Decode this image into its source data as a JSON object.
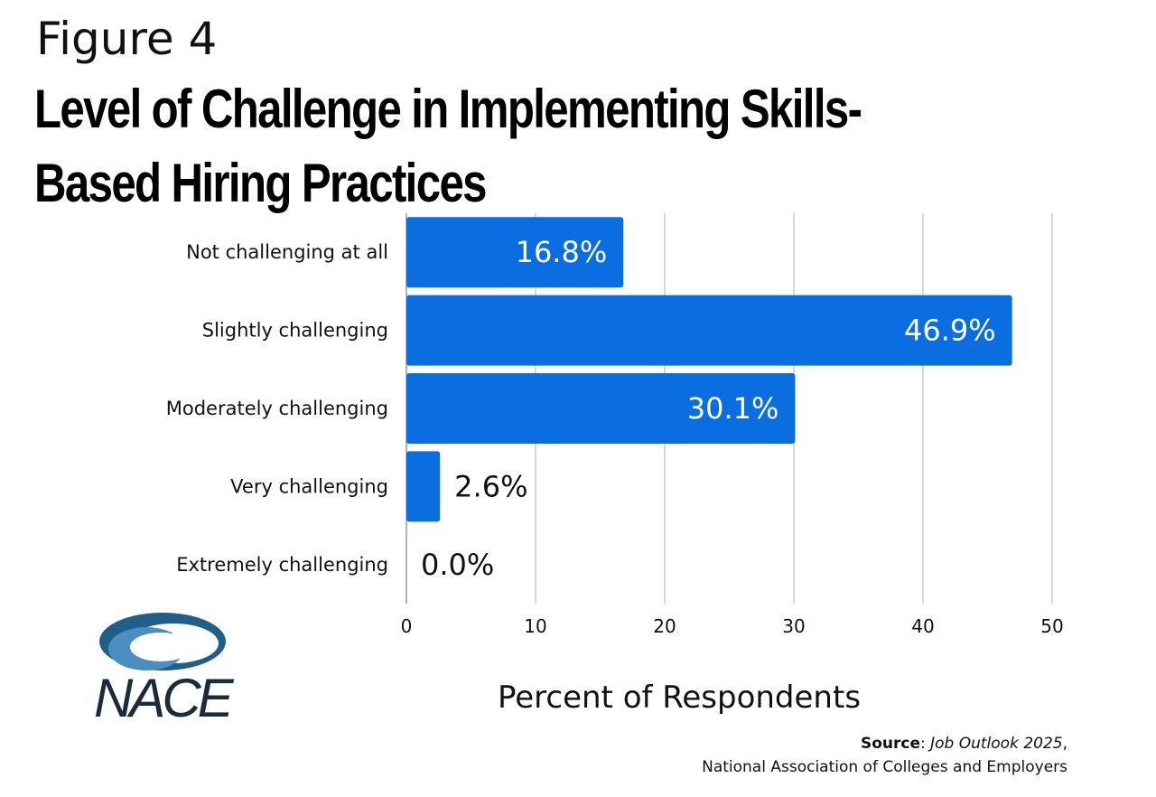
{
  "figure_label": "Figure 4",
  "source": {
    "label": "Source",
    "publication": "Job Outlook 2025",
    "organization": "National Association of Colleges and Employers"
  },
  "logo": {
    "text": "NACE",
    "icon": "nace-swoosh-logo"
  },
  "colors": {
    "bar": "#0a6ee0",
    "grid": "#cccccc",
    "label_inside": "#ffffff",
    "label_outside": "#111111"
  },
  "chart_data": {
    "type": "bar",
    "orientation": "horizontal",
    "title": "Level of Challenge in Implementing Skills-Based Hiring Practices",
    "xlabel": "Percent of Respondents",
    "ylabel": "",
    "categories": [
      "Not challenging at all",
      "Slightly challenging",
      "Moderately challenging",
      "Very challenging",
      "Extremely challenging"
    ],
    "values": [
      16.8,
      46.9,
      30.1,
      2.6,
      0.0
    ],
    "data_labels": [
      "16.8%",
      "46.9%",
      "30.1%",
      "2.6%",
      "0.0%"
    ],
    "xlim": [
      0,
      50
    ],
    "xticks": [
      0,
      10,
      20,
      30,
      40,
      50
    ],
    "grid": true,
    "legend": "none"
  }
}
